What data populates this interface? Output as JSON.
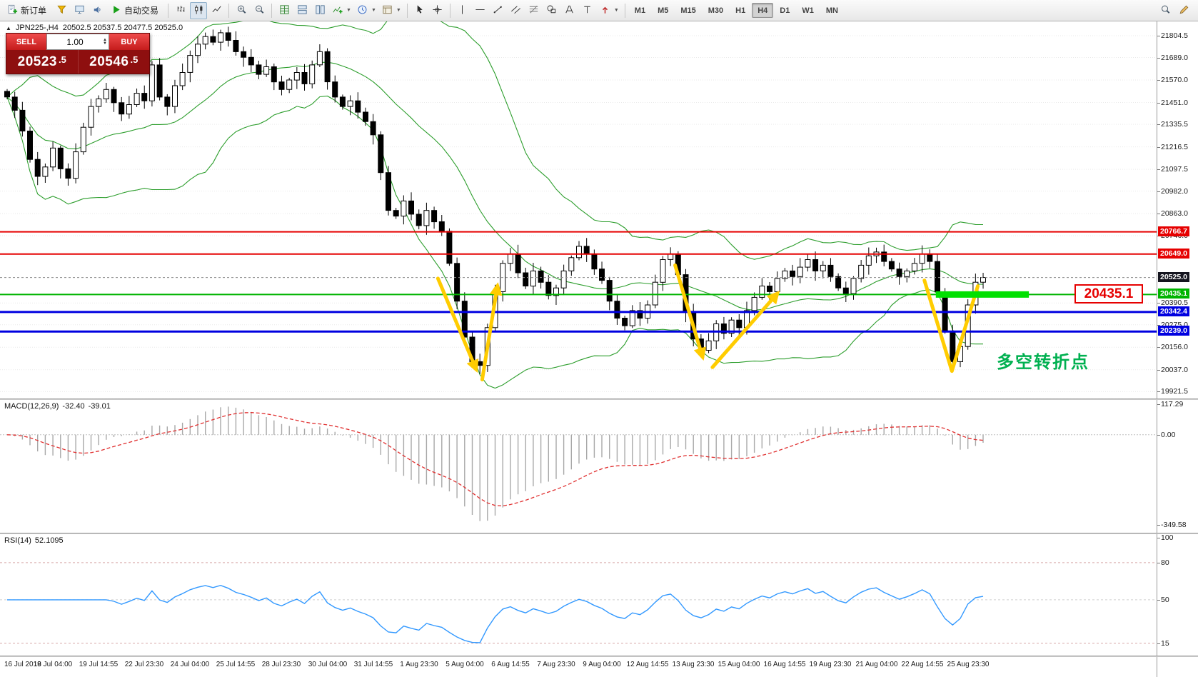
{
  "toolbar": {
    "items": [
      {
        "t": "btn",
        "name": "new-order-button",
        "icon": "new-order-icon",
        "label": "新订单"
      },
      {
        "t": "btn",
        "name": "data-window-button",
        "icon": "funnel-icon"
      },
      {
        "t": "btn",
        "name": "market-watch-button",
        "icon": "monitor-icon"
      },
      {
        "t": "btn",
        "name": "sound-button",
        "icon": "sound-icon"
      },
      {
        "t": "btn",
        "name": "auto-trading-button",
        "icon": "play-icon",
        "label": "自动交易"
      },
      {
        "t": "sep"
      },
      {
        "t": "btn",
        "name": "bar-chart-button",
        "icon": "bar-chart-icon"
      },
      {
        "t": "btn",
        "name": "candlestick-chart-button",
        "icon": "candlestick-icon",
        "active": true
      },
      {
        "t": "btn",
        "name": "line-chart-button",
        "icon": "line-chart-icon"
      },
      {
        "t": "sep"
      },
      {
        "t": "btn",
        "name": "zoom-in-button",
        "icon": "zoom-in-icon"
      },
      {
        "t": "btn",
        "name": "zoom-out-button",
        "icon": "zoom-out-icon"
      },
      {
        "t": "sep"
      },
      {
        "t": "btn",
        "name": "tile-windows-button",
        "icon": "grid-icon"
      },
      {
        "t": "btn",
        "name": "cascade-windows-button",
        "icon": "tile-h-icon"
      },
      {
        "t": "btn",
        "name": "arrange-windows-button",
        "icon": "tile-v-icon"
      },
      {
        "t": "btn",
        "name": "indicators-button",
        "icon": "indicators-icon",
        "dd": true
      },
      {
        "t": "btn",
        "name": "periods-button",
        "icon": "clock-icon",
        "dd": true
      },
      {
        "t": "btn",
        "name": "templates-button",
        "icon": "template-icon",
        "dd": true
      },
      {
        "t": "sep"
      },
      {
        "t": "btn",
        "name": "cursor-button",
        "icon": "cursor-icon"
      },
      {
        "t": "btn",
        "name": "crosshair-button",
        "icon": "crosshair-icon"
      },
      {
        "t": "sep"
      },
      {
        "t": "btn",
        "name": "vertical-line-button",
        "icon": "vline-icon"
      },
      {
        "t": "btn",
        "name": "horizontal-line-button",
        "icon": "hline-icon"
      },
      {
        "t": "btn",
        "name": "trendline-button",
        "icon": "trendline-icon"
      },
      {
        "t": "btn",
        "name": "channel-button",
        "icon": "channel-icon"
      },
      {
        "t": "btn",
        "name": "fibonacci-button",
        "icon": "fibonacci-icon"
      },
      {
        "t": "btn",
        "name": "shapes-button",
        "icon": "shapes-icon"
      },
      {
        "t": "btn",
        "name": "text-button",
        "icon": "text-icon"
      },
      {
        "t": "btn",
        "name": "text-label-button",
        "icon": "label-icon"
      },
      {
        "t": "btn",
        "name": "arrows-button",
        "icon": "arrows-icon",
        "dd": true
      },
      {
        "t": "sep"
      }
    ],
    "timeframes": [
      "M1",
      "M5",
      "M15",
      "M30",
      "H1",
      "H4",
      "D1",
      "W1",
      "MN"
    ],
    "active_timeframe": "H4",
    "right_items": [
      {
        "name": "search-button",
        "icon": "search-icon"
      },
      {
        "name": "quick-edit-button",
        "icon": "pencil-icon"
      }
    ]
  },
  "chart": {
    "collapse_glyph": "▲",
    "symbol_title": "JPN225-,H4",
    "ohlc_values": "20502.5 20537.5 20477.5 20525.0",
    "trade_panel": {
      "sell_label": "SELL",
      "buy_label": "BUY",
      "volume": "1.00",
      "sell_price_main": "20523",
      "sell_price_frac": ".5",
      "buy_price_main": "20546",
      "buy_price_frac": ".5"
    },
    "y_labels": [
      "21804.5",
      "21689.0",
      "21570.0",
      "21451.0",
      "21335.5",
      "21216.5",
      "21097.5",
      "20982.0",
      "20863.0",
      "20746.0",
      "20390.5",
      "20275.0",
      "20156.0",
      "20037.0",
      "19921.5"
    ],
    "levels": [
      {
        "label": "20766.7",
        "price": 20766.7,
        "color": "#e60000",
        "w": 2
      },
      {
        "label": "20649.0",
        "price": 20649.0,
        "color": "#e60000",
        "w": 2
      },
      {
        "label": "20525.0",
        "price": 20525.0,
        "color": "#15151f",
        "w": 1,
        "current": true
      },
      {
        "label": "20435.1",
        "price": 20435.1,
        "color": "#00b400",
        "w": 2
      },
      {
        "label": "20342.4",
        "price": 20342.4,
        "color": "#0000e0",
        "w": 3
      },
      {
        "label": "20239.0",
        "price": 20239.0,
        "color": "#0000e0",
        "w": 3
      }
    ],
    "annotations": {
      "price_box": "20435.1",
      "turning_point": "多空转折点"
    }
  },
  "macd": {
    "name": "MACD(12,26,9)",
    "value_main": "-32.40",
    "value_signal": "-39.01",
    "y_labels": [
      "117.29",
      "0.00",
      "-349.58"
    ]
  },
  "rsi": {
    "name": "RSI(14)",
    "value": "52.1095",
    "y_labels": [
      "100",
      "80",
      "50",
      "15"
    ]
  },
  "time_axis": [
    "16 Jul 2019",
    "18 Jul 04:00",
    "19 Jul 14:55",
    "22 Jul 23:30",
    "24 Jul 04:00",
    "25 Jul 14:55",
    "28 Jul 23:30",
    "30 Jul 04:00",
    "31 Jul 14:55",
    "1 Aug 23:30",
    "5 Aug 04:00",
    "6 Aug 14:55",
    "7 Aug 23:30",
    "9 Aug 04:00",
    "12 Aug 14:55",
    "13 Aug 23:30",
    "15 Aug 04:00",
    "16 Aug 14:55",
    "19 Aug 23:30",
    "21 Aug 04:00",
    "22 Aug 14:55",
    "25 Aug 23:30"
  ],
  "colors": {
    "line_red": "#e60000",
    "line_green": "#00b400",
    "line_blue": "#0000e0",
    "bb_green": "#2d9e2d",
    "annotation_yellow": "#ffcc00",
    "highlight_green": "#00e000",
    "rsi_blue": "#3399ff",
    "macd_hist_gray": "#a8a8a8",
    "macd_signal_red": "#e03030",
    "button_red": "#e03131",
    "panel_dark_red": "#8e0f0f"
  },
  "chart_data": {
    "type": "candlestick",
    "symbol": "JPN225-",
    "period": "H4",
    "price_axis_range": [
      19885,
      21880
    ],
    "macd_axis_range": [
      -380,
      135
    ],
    "rsi_axis_range": [
      5,
      103
    ],
    "overlays": {
      "bollinger_period": 20,
      "bollinger_deviation": 2
    },
    "closes": [
      21480,
      21410,
      21300,
      21150,
      21060,
      21110,
      21210,
      21100,
      21050,
      21190,
      21320,
      21430,
      21470,
      21520,
      21450,
      21390,
      21440,
      21500,
      21460,
      21650,
      21480,
      21430,
      21540,
      21610,
      21700,
      21760,
      21800,
      21770,
      21820,
      21780,
      21720,
      21690,
      21650,
      21600,
      21640,
      21560,
      21520,
      21570,
      21610,
      21550,
      21650,
      21720,
      21560,
      21480,
      21430,
      21460,
      21400,
      21350,
      21280,
      21080,
      20880,
      20850,
      20930,
      20860,
      20800,
      20880,
      20820,
      20770,
      20600,
      20400,
      20210,
      20080,
      20060,
      20260,
      20450,
      20600,
      20650,
      20550,
      20480,
      20560,
      20500,
      20430,
      20470,
      20560,
      20630,
      20690,
      20650,
      20570,
      20510,
      20400,
      20310,
      20270,
      20350,
      20310,
      20380,
      20500,
      20620,
      20650,
      20540,
      20340,
      20200,
      20140,
      20190,
      20280,
      20230,
      20300,
      20260,
      20350,
      20420,
      20480,
      20450,
      20520,
      20560,
      20530,
      20580,
      20620,
      20560,
      20590,
      20530,
      20470,
      20440,
      20520,
      20590,
      20640,
      20660,
      20610,
      20570,
      20530,
      20560,
      20600,
      20650,
      20610,
      20450,
      20240,
      20080,
      20160,
      20380,
      20500,
      20525
    ]
  }
}
